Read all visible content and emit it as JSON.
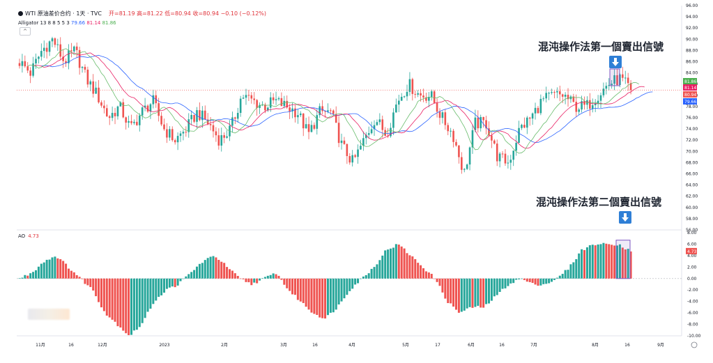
{
  "header": {
    "symbol": "WTI 原油差价合约 · 1天 · TVC",
    "ohlc": "开=81.19 高=81.22 低=80.94 收=80.94 −0.10 (−0.12%)"
  },
  "indicator": {
    "name": "Alligator 13 8 8 5 5 3",
    "values": [
      "79.66",
      "81.14",
      "81.86"
    ]
  },
  "ao_indicator": {
    "name": "AO",
    "value": "4.73"
  },
  "annotations": {
    "first_sell": "混沌操作法第一個賣出信號",
    "second_sell": "混沌操作法第二個賣出信號"
  },
  "price_badges": [
    "81.86",
    "81.14",
    "80.94",
    "79.66"
  ],
  "colors": {
    "up": "#26a69a",
    "down": "#ef5350",
    "jaw": "#2962ff",
    "teeth": "#e91e63",
    "lips": "#66bb6a",
    "highlight": "#7e57c2"
  },
  "chart_data": [
    {
      "type": "candlestick",
      "x_ticks": [
        "11月",
        "16",
        "12月",
        "2023",
        "2月",
        "3月",
        "16",
        "4月",
        "5月",
        "17",
        "6月",
        "16",
        "7月",
        "8月",
        "16",
        "9月"
      ],
      "y_ticks": [
        "96.00",
        "94.00",
        "92.00",
        "90.00",
        "88.00",
        "86.00",
        "84.00",
        "82.00",
        "80.00",
        "78.00",
        "76.00",
        "74.00",
        "72.00",
        "70.00",
        "68.00",
        "66.00",
        "64.00",
        "62.00",
        "60.00",
        "58.00",
        "56.00"
      ],
      "ylim": [
        56,
        96
      ],
      "close_anchors": [
        86,
        84,
        88,
        90,
        86,
        88,
        83,
        80,
        76,
        78,
        74,
        77,
        79,
        74,
        72,
        74,
        77,
        75,
        72,
        74,
        80,
        79,
        78,
        79,
        78,
        77,
        73,
        77,
        77,
        71,
        68,
        72,
        76,
        73,
        79,
        82,
        80,
        80,
        76,
        73,
        66,
        75,
        75,
        69,
        68,
        74,
        76,
        79,
        80,
        80,
        78,
        78,
        80,
        82,
        83,
        81
      ],
      "series_lines": [
        {
          "name": "Alligator Jaw",
          "last": 79.66
        },
        {
          "name": "Alligator Teeth",
          "last": 81.14
        },
        {
          "name": "Alligator Lips",
          "last": 81.86
        }
      ],
      "last_close": 80.94
    },
    {
      "type": "bar",
      "name": "AO",
      "ylim": [
        -10,
        8
      ],
      "y_ticks": [
        "8.00",
        "6.00",
        "4.00",
        "2.00",
        "0.00",
        "-2.00",
        "-4.00",
        "-6.00",
        "-8.00",
        "-10.00"
      ],
      "anchors": [
        0,
        1,
        3,
        4,
        2,
        0,
        -2,
        -6,
        -8,
        -10,
        -8,
        -4,
        -2,
        -1,
        1,
        3,
        4,
        2,
        0,
        -1,
        0,
        1,
        -2,
        -4,
        -6,
        -7,
        -5,
        -2,
        0,
        2,
        5,
        6,
        4,
        2,
        0,
        -4,
        -6,
        -5,
        -5,
        -3,
        -1,
        0,
        -1,
        -1,
        0,
        2,
        5,
        6,
        6,
        6,
        4.73
      ],
      "last": 4.73
    }
  ]
}
